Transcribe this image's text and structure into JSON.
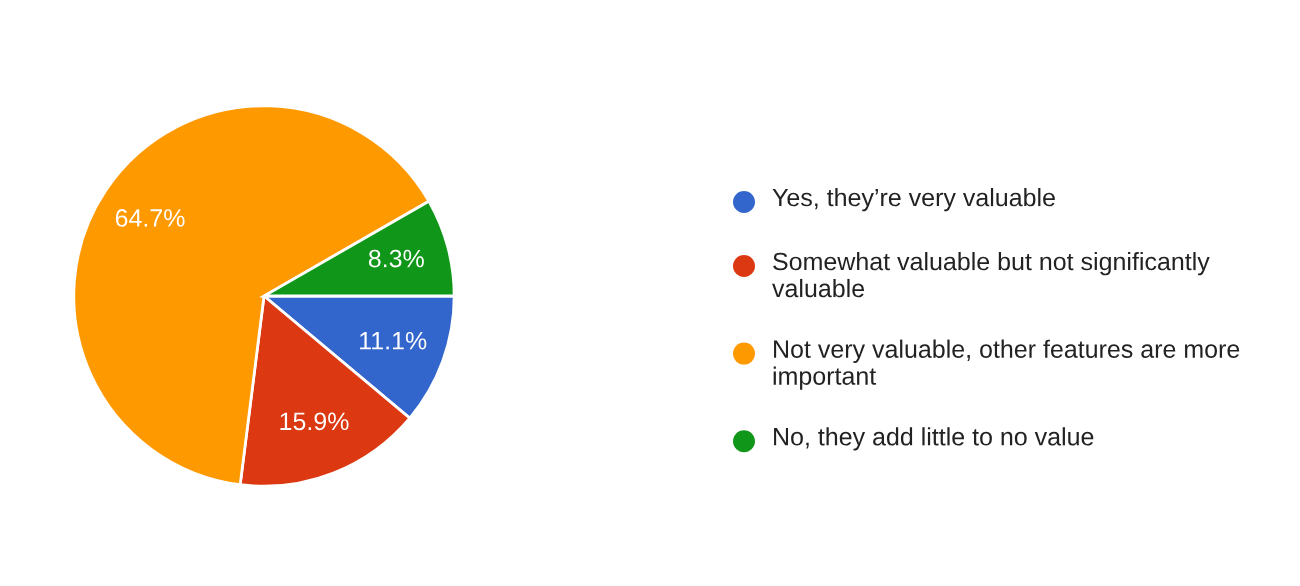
{
  "chart_data": {
    "type": "pie",
    "categories": [
      "Yes, they’re very valuable",
      "Somewhat valuable but not significantly valuable",
      "Not very valuable, other features are more important",
      "No, they add little to no value"
    ],
    "values": [
      11.1,
      15.9,
      64.7,
      8.3
    ],
    "colors": [
      "#3366cc",
      "#dc3912",
      "#ff9900",
      "#109618"
    ],
    "value_labels": [
      "11.1%",
      "15.9%",
      "64.7%",
      "8.3%"
    ],
    "legend": "right"
  }
}
